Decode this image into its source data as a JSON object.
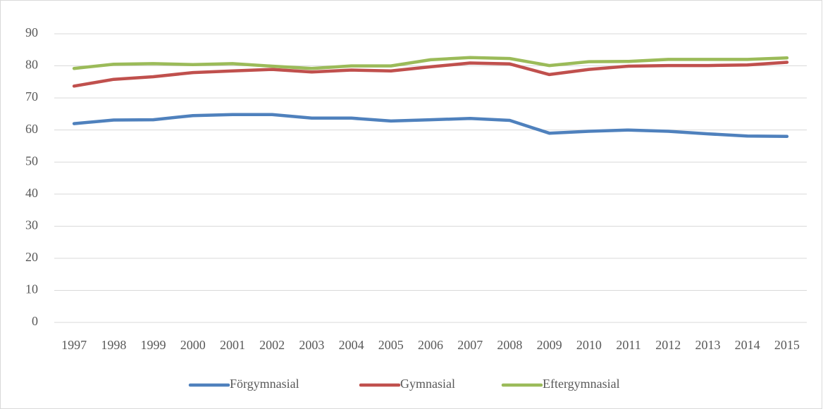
{
  "chart_data": {
    "type": "line",
    "categories": [
      "1997",
      "1998",
      "1999",
      "2000",
      "2001",
      "2002",
      "2003",
      "2004",
      "2005",
      "2006",
      "2007",
      "2008",
      "2009",
      "2010",
      "2011",
      "2012",
      "2013",
      "2014",
      "2015"
    ],
    "series": [
      {
        "name": "Förgymnasial",
        "color": "#4f81bd",
        "values": [
          62.0,
          63.1,
          63.2,
          64.5,
          64.8,
          64.8,
          63.7,
          63.7,
          62.8,
          63.2,
          63.6,
          63.0,
          59.0,
          59.6,
          60.0,
          59.6,
          58.8,
          58.1,
          58.0
        ]
      },
      {
        "name": "Gymnasial",
        "color": "#c0504d",
        "values": [
          73.7,
          75.8,
          76.6,
          77.9,
          78.4,
          78.9,
          78.1,
          78.7,
          78.4,
          79.7,
          80.9,
          80.6,
          77.3,
          78.9,
          79.9,
          80.1,
          80.1,
          80.3,
          81.1
        ]
      },
      {
        "name": "Eftergymnasial",
        "color": "#9bbb59",
        "values": [
          79.2,
          80.5,
          80.7,
          80.4,
          80.7,
          79.9,
          79.2,
          80.0,
          80.0,
          81.9,
          82.6,
          82.3,
          80.1,
          81.3,
          81.4,
          82.0,
          82.0,
          82.0,
          82.5
        ]
      }
    ],
    "ylim": [
      0,
      90
    ],
    "yticks": [
      0,
      10,
      20,
      30,
      40,
      50,
      60,
      70,
      80,
      90
    ],
    "grid": true,
    "legend": "bottom"
  }
}
